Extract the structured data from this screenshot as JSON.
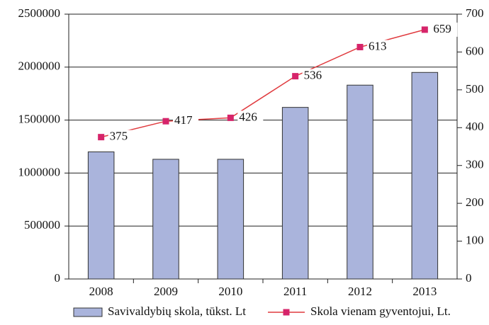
{
  "chart_data": {
    "type": "bar_line",
    "categories": [
      "2008",
      "2009",
      "2010",
      "2011",
      "2012",
      "2013"
    ],
    "series": [
      {
        "name": "Savivaldybių skola, tūkst. Lt",
        "type": "bar",
        "color": "#aab4dc",
        "values": [
          1200000,
          1130000,
          1130000,
          1620000,
          1830000,
          1950000
        ]
      },
      {
        "name": "Skola vienam gyventojui, Lt.",
        "type": "line",
        "axis": "y2",
        "color": "#e03a3e",
        "marker_color": "#d6246a",
        "values": [
          375,
          417,
          426,
          536,
          613,
          659
        ]
      }
    ],
    "ylim": [
      0,
      2500000
    ],
    "yticks": [
      0,
      500000,
      1000000,
      1500000,
      2000000,
      2500000
    ],
    "y2lim": [
      0,
      700
    ],
    "y2ticks": [
      0,
      100,
      200,
      300,
      400,
      500,
      600,
      700
    ],
    "grid": true,
    "legend": "bottom"
  }
}
